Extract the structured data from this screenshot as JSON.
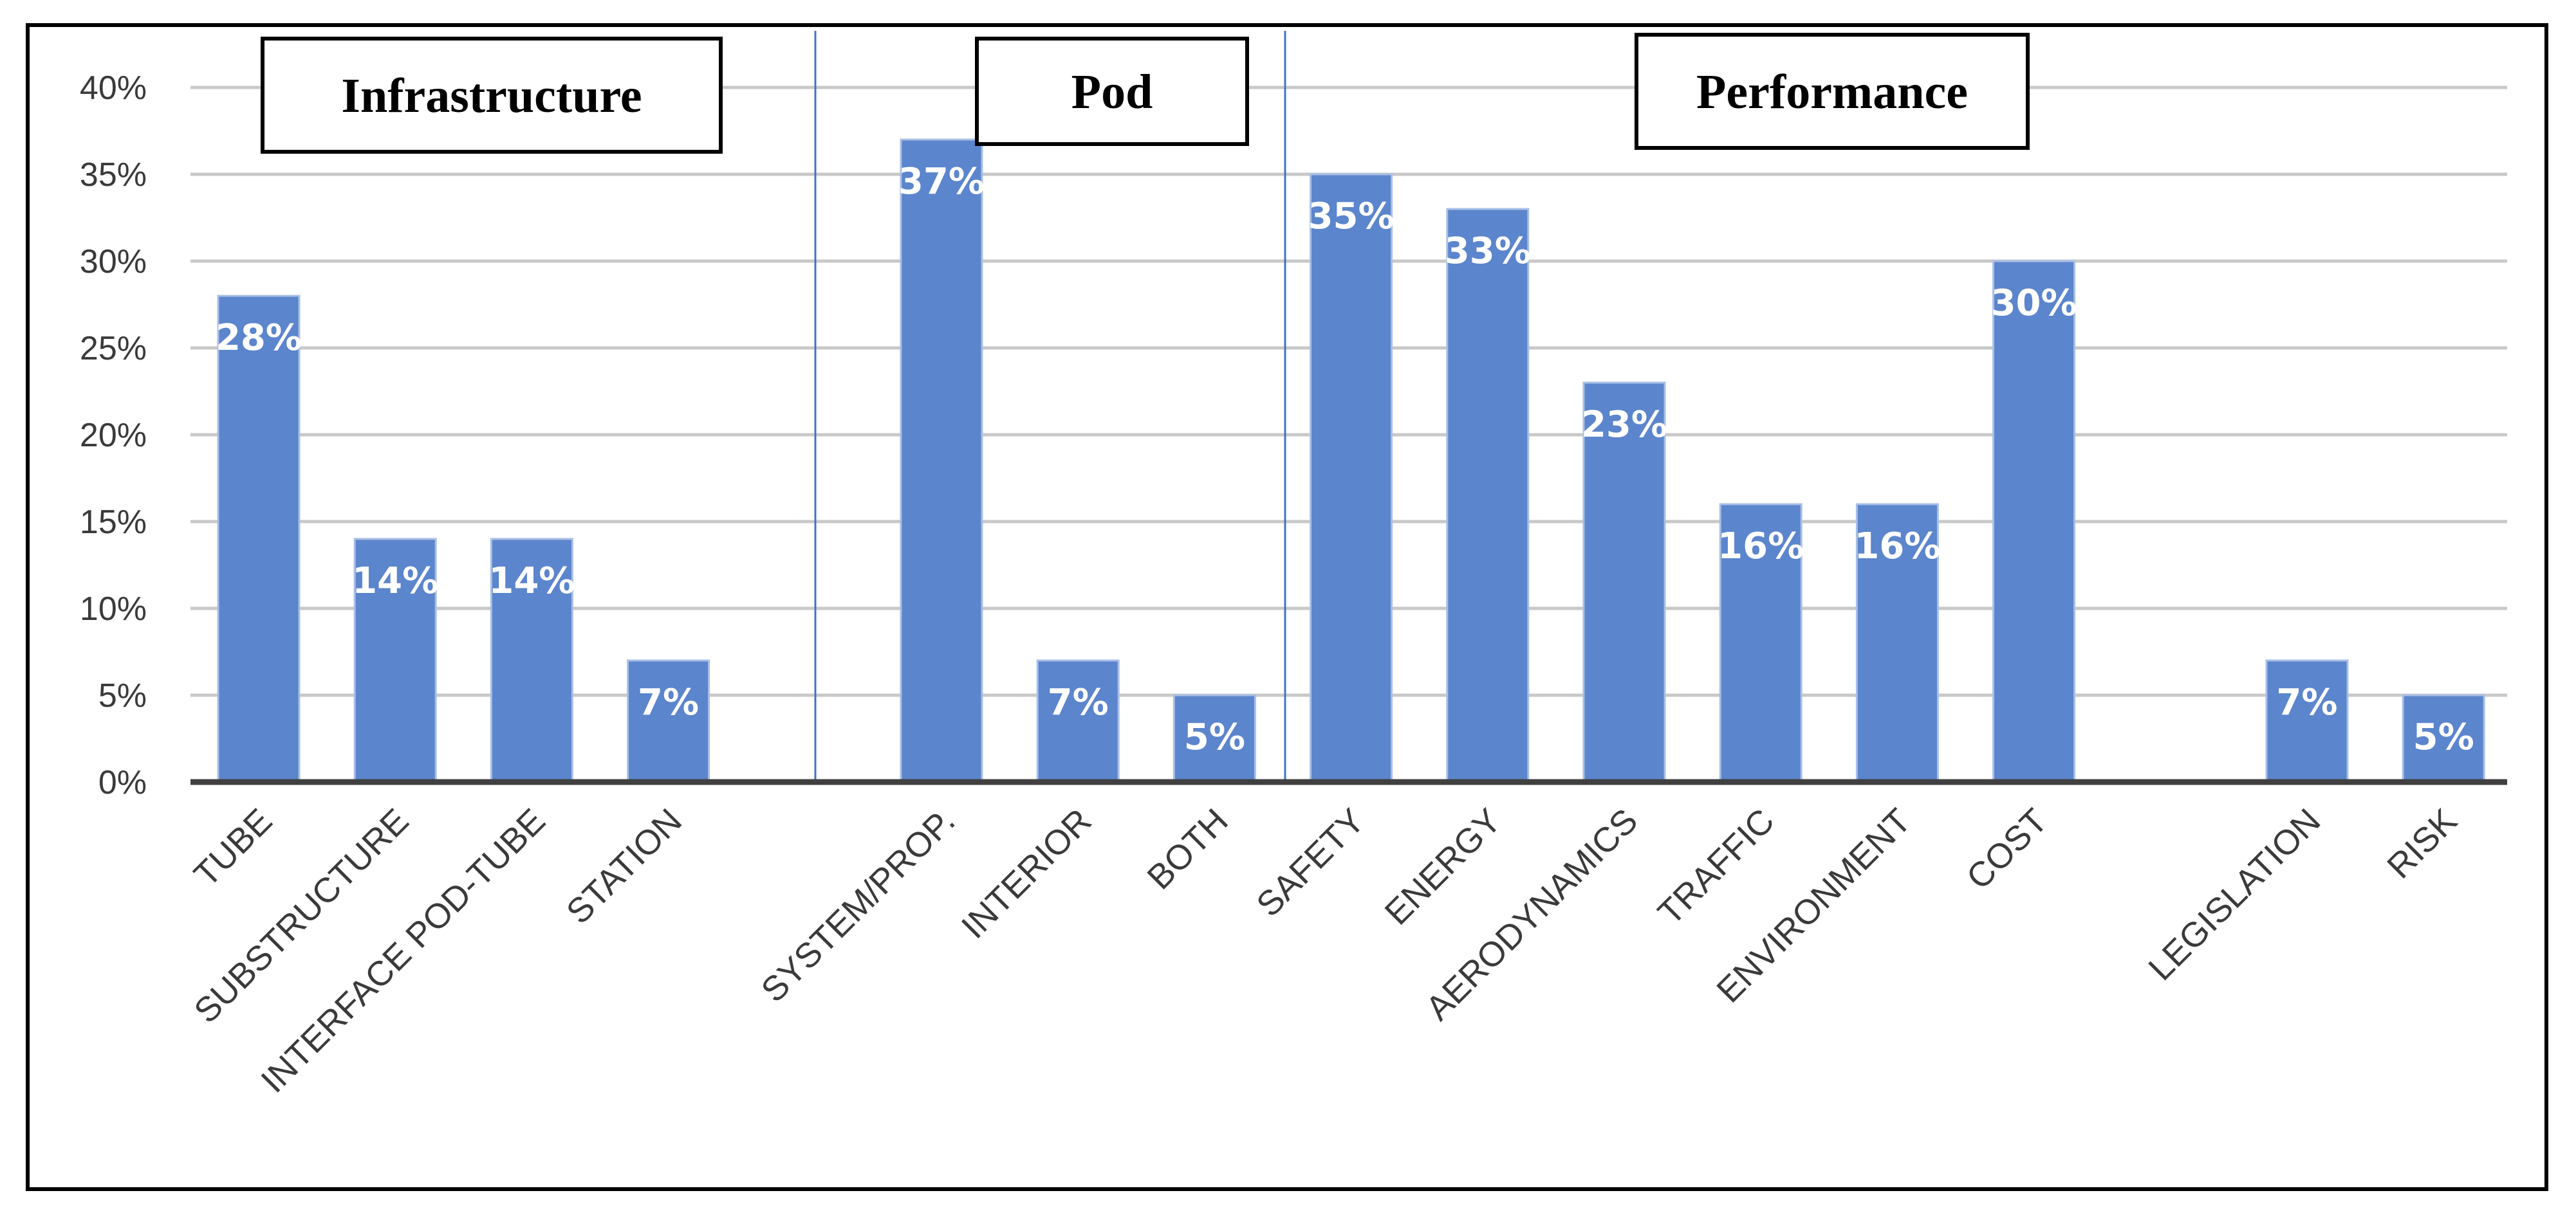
{
  "chart_data": {
    "type": "bar",
    "categories": [
      "TUBE",
      "SUBSTRUCTURE",
      "INTERFACE POD-TUBE",
      "STATION",
      "SYSTEM/PROP.",
      "INTERIOR",
      "BOTH",
      "SAFETY",
      "ENERGY",
      "AERODYNAMICS",
      "TRAFFIC",
      "ENVIRONMENT",
      "COST",
      "LEGISLATION",
      "RISK"
    ],
    "values": [
      0.28,
      0.14,
      0.14,
      0.07,
      0.37,
      0.07,
      0.05,
      0.35,
      0.33,
      0.23,
      0.16,
      0.16,
      0.3,
      0.07,
      0.05
    ],
    "value_labels": [
      "28%",
      "14%",
      "14%",
      "7%",
      "37%",
      "7%",
      "5%",
      "35%",
      "33%",
      "23%",
      "16%",
      "16%",
      "30%",
      "7%",
      "5%"
    ],
    "y_ticks": [
      "0%",
      "5%",
      "10%",
      "15%",
      "20%",
      "25%",
      "30%",
      "35%",
      "40%"
    ],
    "ylim": [
      0,
      0.4
    ],
    "grid": true,
    "groups": [
      {
        "label": "Infrastructure",
        "categories": [
          "TUBE",
          "SUBSTRUCTURE",
          "INTERFACE POD-TUBE",
          "STATION"
        ]
      },
      {
        "label": "Pod",
        "categories": [
          "SYSTEM/PROP.",
          "INTERIOR",
          "BOTH"
        ]
      },
      {
        "label": "Performance",
        "categories": [
          "SAFETY",
          "ENERGY",
          "AERODYNAMICS",
          "TRAFFIC",
          "ENVIRONMENT",
          "COST",
          "LEGISLATION",
          "RISK"
        ]
      }
    ],
    "colors": {
      "bar": "#5b85cc",
      "bar_edge": "#a9bfe6",
      "grid": "#c8c8c8",
      "axis": "#404040",
      "divider": "#4472c4"
    }
  }
}
